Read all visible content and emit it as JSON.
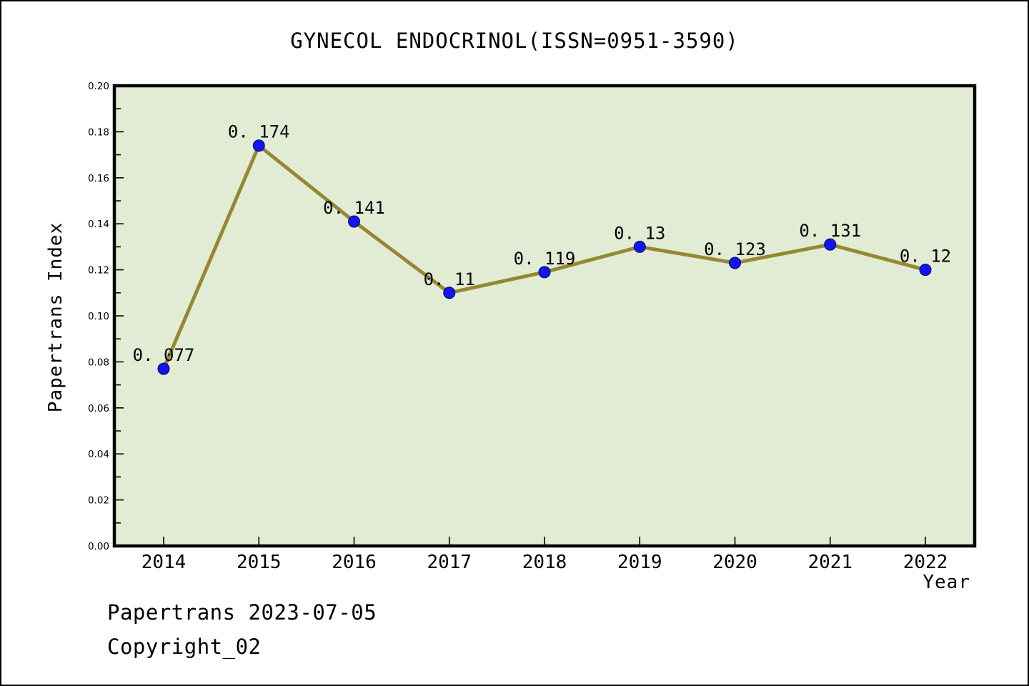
{
  "page": {
    "background": "#ffffff",
    "border_color": "#000000",
    "footer": {
      "line1": "Papertrans 2023-07-05",
      "line2": "Copyright_02"
    }
  },
  "chart_data": {
    "type": "line",
    "title": "GYNECOL ENDOCRINOL(ISSN=0951-3590)",
    "xlabel": "Year",
    "ylabel": "Papertrans Index",
    "x": [
      2014,
      2015,
      2016,
      2017,
      2018,
      2019,
      2020,
      2021,
      2022
    ],
    "values": [
      0.077,
      0.174,
      0.141,
      0.11,
      0.119,
      0.13,
      0.123,
      0.131,
      0.12
    ],
    "point_labels": [
      "0. 077",
      "0. 174",
      "0. 141",
      "0. 11",
      "0. 119",
      "0. 13",
      "0. 123",
      "0. 131",
      "0. 12"
    ],
    "ylim": [
      0.0,
      0.2
    ],
    "ytick_step": 0.02,
    "yminor_step": 0.01,
    "ytick_labels": [
      "0.00",
      "0.02",
      "0.04",
      "0.06",
      "0.08",
      "0.10",
      "0.12",
      "0.14",
      "0.16",
      "0.18",
      "0.20"
    ],
    "grid": "off",
    "legend": "none",
    "colors": {
      "plot_bg": "#e2ecd5",
      "line": "#968733",
      "marker": "#1414f0",
      "marker_edge": "#000060",
      "axis": "#000000",
      "text": "#000000"
    }
  }
}
